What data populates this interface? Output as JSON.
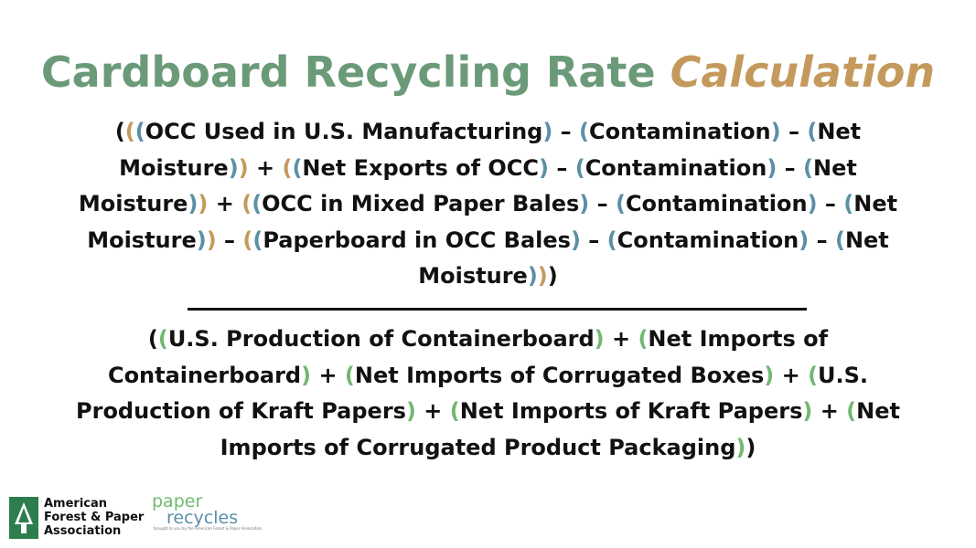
{
  "title": {
    "main": "Cardboard Recycling Rate",
    "accent": "Calculation"
  },
  "colors": {
    "title": "#6b9a78",
    "tan": "#c49a5c",
    "blue": "#5b8fa8",
    "green": "#72b872"
  },
  "formula": {
    "numerator": [
      {
        "t": "("
      },
      {
        "t": "(",
        "c": "tan"
      },
      {
        "t": "(",
        "c": "blue"
      },
      {
        "t": "OCC Used in U.S. Manufacturing"
      },
      {
        "t": ")",
        "c": "blue"
      },
      {
        "t": " – "
      },
      {
        "t": "(",
        "c": "blue"
      },
      {
        "t": "Contamination"
      },
      {
        "t": ")",
        "c": "blue"
      },
      {
        "t": " – "
      },
      {
        "t": "(",
        "c": "blue"
      },
      {
        "t": "Net Moisture"
      },
      {
        "t": ")",
        "c": "blue"
      },
      {
        "t": ")",
        "c": "tan"
      },
      {
        "t": " + "
      },
      {
        "t": "(",
        "c": "tan"
      },
      {
        "t": "(",
        "c": "blue"
      },
      {
        "t": "Net Exports of OCC"
      },
      {
        "t": ")",
        "c": "blue"
      },
      {
        "t": " – "
      },
      {
        "t": "(",
        "c": "blue"
      },
      {
        "t": "Contamination"
      },
      {
        "t": ")",
        "c": "blue"
      },
      {
        "t": " – "
      },
      {
        "t": "(",
        "c": "blue"
      },
      {
        "t": "Net Moisture"
      },
      {
        "t": ")",
        "c": "blue"
      },
      {
        "t": ")",
        "c": "tan"
      },
      {
        "t": " + "
      },
      {
        "t": "(",
        "c": "tan"
      },
      {
        "t": "(",
        "c": "blue"
      },
      {
        "t": "OCC in Mixed Paper Bales"
      },
      {
        "t": ")",
        "c": "blue"
      },
      {
        "t": " – "
      },
      {
        "t": "(",
        "c": "blue"
      },
      {
        "t": "Contamination"
      },
      {
        "t": ")",
        "c": "blue"
      },
      {
        "t": " – "
      },
      {
        "t": "(",
        "c": "blue"
      },
      {
        "t": "Net Moisture"
      },
      {
        "t": ")",
        "c": "blue"
      },
      {
        "t": ")",
        "c": "tan"
      },
      {
        "t": " – "
      },
      {
        "t": "(",
        "c": "tan"
      },
      {
        "t": "(",
        "c": "blue"
      },
      {
        "t": "Paperboard in OCC Bales"
      },
      {
        "t": ")",
        "c": "blue"
      },
      {
        "t": " – "
      },
      {
        "t": "(",
        "c": "blue"
      },
      {
        "t": "Contamination"
      },
      {
        "t": ")",
        "c": "blue"
      },
      {
        "t": " – "
      },
      {
        "t": "(",
        "c": "blue"
      },
      {
        "t": "Net Moisture"
      },
      {
        "t": ")",
        "c": "blue"
      },
      {
        "t": ")",
        "c": "tan"
      },
      {
        "t": ")"
      }
    ],
    "denominator": [
      {
        "t": "("
      },
      {
        "t": "(",
        "c": "green"
      },
      {
        "t": "U.S. Production of Containerboard"
      },
      {
        "t": ")",
        "c": "green"
      },
      {
        "t": " + "
      },
      {
        "t": "(",
        "c": "green"
      },
      {
        "t": "Net Imports of Containerboard"
      },
      {
        "t": ")",
        "c": "green"
      },
      {
        "t": " + "
      },
      {
        "t": "(",
        "c": "green"
      },
      {
        "t": "Net Imports of Corrugated Boxes"
      },
      {
        "t": ")",
        "c": "green"
      },
      {
        "t": " + "
      },
      {
        "t": "(",
        "c": "green"
      },
      {
        "t": "U.S. Production of Kraft Papers"
      },
      {
        "t": ")",
        "c": "green"
      },
      {
        "t": " + "
      },
      {
        "t": "(",
        "c": "green"
      },
      {
        "t": "Net Imports of Kraft Papers"
      },
      {
        "t": ")",
        "c": "green"
      },
      {
        "t": " + "
      },
      {
        "t": "(",
        "c": "green"
      },
      {
        "t": "Net Imports of Corrugated Product Packaging"
      },
      {
        "t": ")",
        "c": "green"
      },
      {
        "t": ")"
      }
    ]
  },
  "footer": {
    "afpa": [
      "American",
      "Forest & Paper",
      "Association"
    ],
    "logo": {
      "top": "paper",
      "bottom": "recycles",
      "tagline": "brought to you by the American Forest & Paper Association"
    }
  }
}
